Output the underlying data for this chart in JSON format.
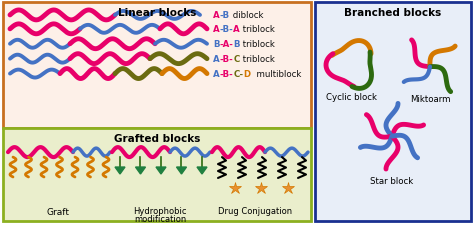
{
  "title_linear": "Linear blocks",
  "title_branched": "Branched blocks",
  "title_grafted": "Grafted blocks",
  "bg_linear": "#fdf0e8",
  "bg_grafted": "#eaeecc",
  "bg_branched": "#e8eef8",
  "border_linear": "#c87020",
  "border_grafted": "#8cb020",
  "border_branched": "#1a3090",
  "color_pink": "#e8006a",
  "color_blue": "#4472c4",
  "color_olive": "#6b6b10",
  "color_orange": "#d47800",
  "color_orange_star": "#e89030",
  "color_green": "#208040",
  "color_dark_green": "#2d6a10",
  "color_black": "#111111",
  "lw_thick": 3.5,
  "lw_thin": 2.8
}
